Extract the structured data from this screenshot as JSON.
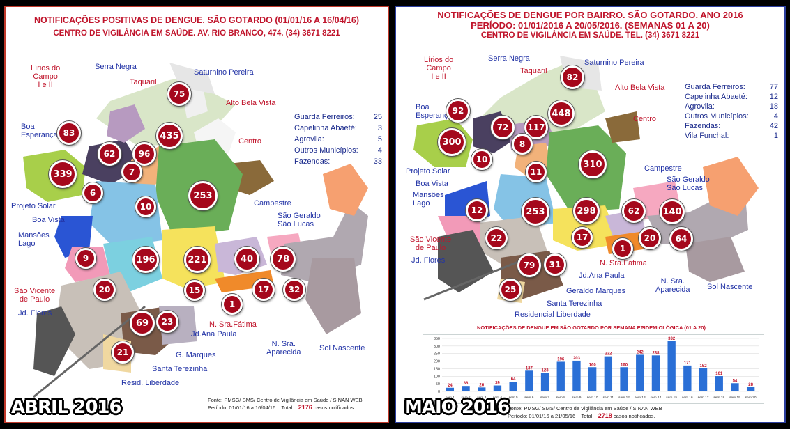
{
  "left": {
    "title1": "NOTIFICAÇÕES POSITIVAS DE DENGUE. SÃO GOTARDO (01/01/16 A 16/04/16)",
    "title2": "CENTRO DE VIGILÂNCIA EM SAÚDE.    AV. RIO BRANCO, 474.     (34) 3671 8221",
    "stats": [
      {
        "label": "Guarda Ferreiros:",
        "value": "25"
      },
      {
        "label": "Capelinha Abaeté:",
        "value": "3"
      },
      {
        "label": "Agrovila:",
        "value": "5"
      },
      {
        "label": "Outros Municípios:",
        "value": "4"
      },
      {
        "label": "Fazendas:",
        "value": "33"
      }
    ],
    "neighborhoods": {
      "lirios": "Lírios do\nCampo\nI e II",
      "serra_negra": "Serra Negra",
      "saturnino": "Saturnino Pereira",
      "taquaril": "Taquaril",
      "alto_bela_vista": "Alto Bela Vista",
      "boa_esperanca": "Boa\nEsperança",
      "centro": "Centro",
      "projeto_solar": "Projeto Solar",
      "boa_vista": "Boa Vista",
      "campestre": "Campestre",
      "sao_geraldo": "São Geraldo\nSão Lucas",
      "mansoes": "Mansões\nLago",
      "sao_vicente": "São Vicente\nde Paulo",
      "jd_flores": "Jd. Flores",
      "n_sra_fatima": "N. Sra.Fátima",
      "jd_ana_paula": "Jd.Ana Paula",
      "n_sra_aparecida": "N. Sra.\nAparecida",
      "sol_nascente": "Sol Nascente",
      "g_marques": "G. Marques",
      "santa_terezinha": "Santa Terezinha",
      "resid_liberdade": "Resid. Liberdade"
    },
    "counts": {
      "saturnino": "75",
      "alto_bela_vista": "435",
      "lirios": "83",
      "serra_negra": "62",
      "taquaril": "96",
      "boa_esperanca": "339",
      "centro_7": "7",
      "centro": "253",
      "projeto_solar": "6",
      "boa_vista": "10",
      "mansoes": "9",
      "sao_vicente_196": "196",
      "n_sra_fatima_221": "221",
      "campestre": "40",
      "sao_geraldo": "78",
      "jd_flores": "20",
      "jd_ana_paula": "15",
      "n_sra_fatima": "1",
      "n_sra_aparecida": "17",
      "sol_nascente": "32",
      "santa_terezinha": "69",
      "g_marques": "23",
      "resid_liberdade": "21"
    },
    "footer1": "Fonte: PMSG/ SMS/ Centro de Vigilância em Saúde / SINAN WEB",
    "footer2": "Período: 01/01/16 a 16/04/16",
    "total_label": "Total:",
    "total_value": "2176",
    "total_suffix": "casos notificados.",
    "tag": "ABRIL 2016"
  },
  "right": {
    "title1": "NOTIFICAÇÕES DE DENGUE POR BAIRRO. SÃO GOTARDO. ANO 2016",
    "title2": "PERÍODO: 01/01/2016 A 20/05/2016. (SEMANAS 01 A 20)",
    "title3": "CENTRO DE VIGILÂNCIA EM SAÚDE. TEL. (34) 3671 8221",
    "stats": [
      {
        "label": "Guarda Ferreiros:",
        "value": "77"
      },
      {
        "label": "Capelinha Abaeté:",
        "value": "12"
      },
      {
        "label": "Agrovila:",
        "value": "18"
      },
      {
        "label": "Outros Municípios:",
        "value": "4"
      },
      {
        "label": "Fazendas:",
        "value": "42"
      },
      {
        "label": "Vila Funchal:",
        "value": "1"
      }
    ],
    "neighborhoods": {
      "lirios": "Lírios do\nCampo\nI e II",
      "serra_negra": "Serra Negra",
      "taquaril": "Taquaril",
      "saturnino": "Saturnino Pereira",
      "alto_bela_vista": "Alto Bela Vista",
      "boa_esperanca": "Boa\nEsperança",
      "centro": "Centro",
      "projeto_solar": "Projeto Solar",
      "boa_vista": "Boa Vista",
      "campestre": "Campestre",
      "sao_geraldo": "São Geraldo\nSão Lucas",
      "mansoes": "Mansões\nLago",
      "sao_vicente": "São Vicente\nde Paulo",
      "jd_flores": "Jd. Flores",
      "n_sra_fatima": "N. Sra.Fátima",
      "jd_ana_paula": "Jd.Ana Paula",
      "n_sra_aparecida": "N. Sra.\nAparecida",
      "sol_nascente": "Sol Nascente",
      "geraldo_marques": "Geraldo Marques",
      "santa_terezinha": "Santa Terezinha",
      "resid_liberdade": "Residencial Liberdade"
    },
    "counts": {
      "lirios": "92",
      "serra_negra": "72",
      "taquaril": "117",
      "saturnino": "82",
      "alto_bela_vista": "448",
      "boa_esperanca": "300",
      "centro_8": "8",
      "centro": "310",
      "projeto_solar": "10",
      "boa_vista": "11",
      "campestre": "62",
      "sao_geraldo": "140",
      "mansoes": "12",
      "sao_vicente_253": "253",
      "n_sra_fatima_298": "298",
      "sao_vicente": "22",
      "jd_ana_paula": "17",
      "n_sra_fatima": "1",
      "n_sra_aparecida": "20",
      "sol_nascente": "64",
      "santa_terezinha": "79",
      "geraldo_marques": "31",
      "resid_liberdade": "25"
    },
    "footer1": "Fonte: PMSG/ SMS/ Centro de Vigilância em Saúde / SINAN WEB",
    "footer2": "Período: 01/01/16 a 21/05/16",
    "total_label": "Total:",
    "total_value": "2718",
    "total_suffix": "casos notificados.",
    "tag": "MAIO 2016"
  },
  "chart_data": {
    "type": "bar",
    "title": "NOTIFICAÇÕES DE DENGUE EM SÃO GOTARDO POR SEMANA EPIDEMIOLÓGICA (01 A 20)",
    "categories": [
      "sem 1",
      "sem 2",
      "sem 3",
      "sem 4",
      "sem 5",
      "sem 6",
      "sem 7",
      "sem 8",
      "sem 9",
      "sem 10",
      "sem 11",
      "sem 12",
      "sem 13",
      "sem 14",
      "sem 15",
      "sem 16",
      "sem 17",
      "sem 18",
      "sem 19",
      "sem 20"
    ],
    "values": [
      24,
      36,
      26,
      39,
      64,
      137,
      123,
      196,
      203,
      160,
      232,
      160,
      242,
      238,
      332,
      171,
      152,
      101,
      54,
      28
    ],
    "ylim": [
      0,
      350
    ],
    "yticks": [
      0,
      50,
      100,
      150,
      200,
      250,
      300,
      350
    ],
    "grid": true,
    "color": "#2a6fd6"
  }
}
